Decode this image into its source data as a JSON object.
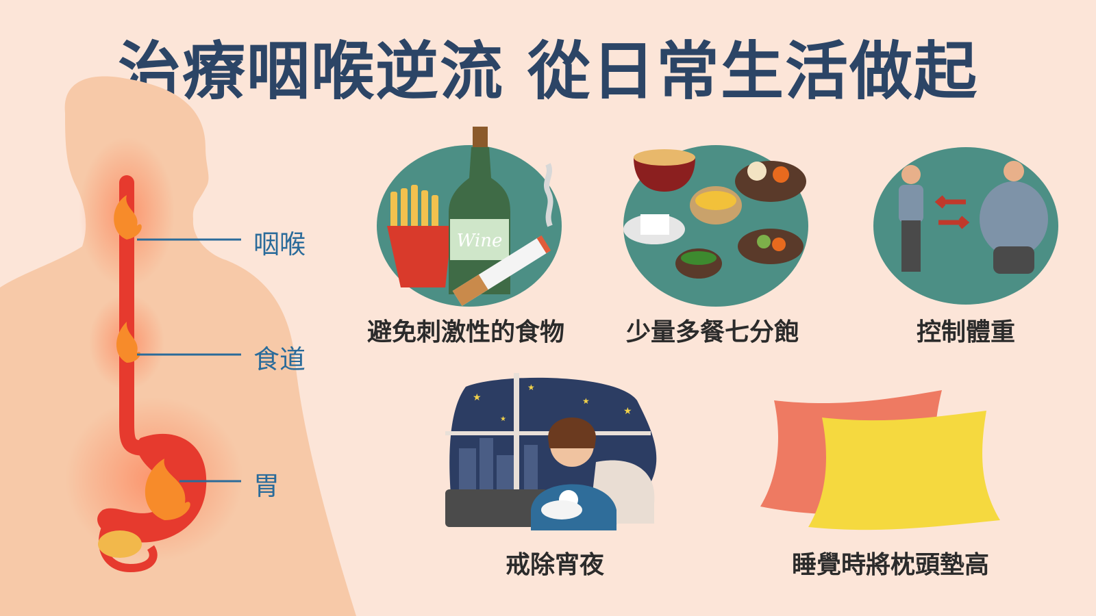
{
  "title": "治療咽喉逆流  從日常生活做起",
  "anatomy": {
    "labels": [
      "咽喉",
      "食道",
      "胃"
    ]
  },
  "tips": [
    {
      "label": "避免刺激性的食物",
      "icon": "junk-food-wine-cigarette-icon"
    },
    {
      "label": "少量多餐七分飽",
      "icon": "small-meals-icon"
    },
    {
      "label": "控制體重",
      "icon": "weight-control-icon"
    },
    {
      "label": "戒除宵夜",
      "icon": "late-night-snack-icon"
    },
    {
      "label": "睡覺時將枕頭墊高",
      "icon": "pillows-icon"
    }
  ],
  "bottle_text": "Wine",
  "colors": {
    "background": "#fce5d8",
    "title": "#2c4566",
    "circle": "#4c8f85",
    "esophagus": "#e63a2e",
    "label_line": "#2a6b9a",
    "body": "#f7c9a8"
  }
}
